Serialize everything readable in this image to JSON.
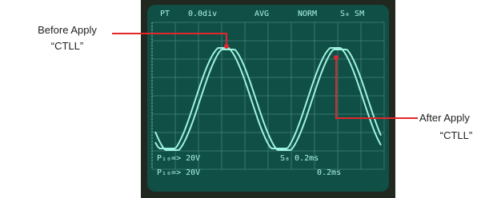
{
  "annotations": {
    "before": {
      "line1": "Before Apply",
      "line2": "“CTLL”"
    },
    "after": {
      "line1": "After Apply",
      "line2": "“CTLL”"
    }
  },
  "screen": {
    "top": [
      "PT",
      "0.0div",
      "AVG",
      "NORM",
      "S₈ SM"
    ],
    "bottom": {
      "row1": [
        "P₁₀=> 20V",
        "S₈ 0.2ms"
      ],
      "row2": [
        "P₁₀=> 20V",
        "0.2ms"
      ]
    }
  }
}
